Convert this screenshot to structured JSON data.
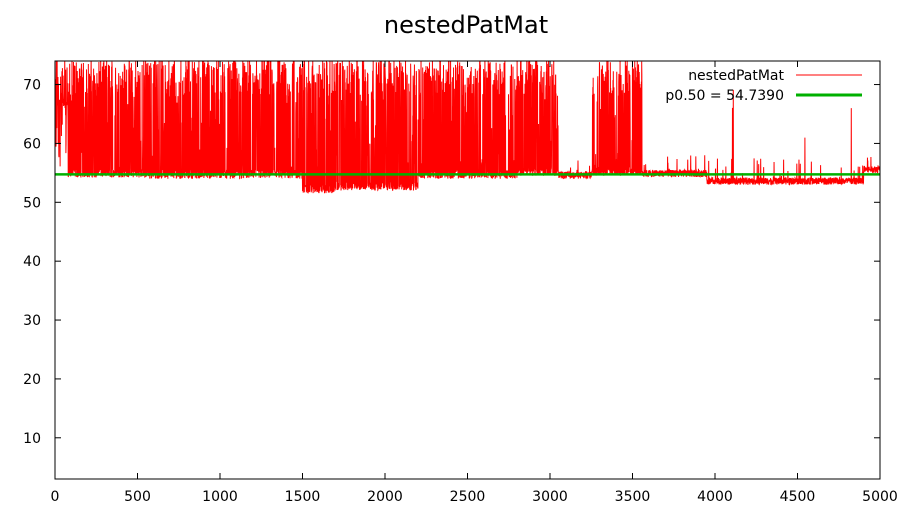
{
  "chart_data": {
    "type": "line",
    "title": "nestedPatMat",
    "xlabel": "",
    "ylabel": "",
    "xlim": [
      0,
      5000
    ],
    "ylim": [
      3,
      74
    ],
    "x_ticks": [
      0,
      500,
      1000,
      1500,
      2000,
      2500,
      3000,
      3500,
      4000,
      4500,
      5000
    ],
    "y_ticks": [
      10,
      20,
      30,
      40,
      50,
      60,
      70
    ],
    "grid": false,
    "legend_position": "top-right",
    "series": [
      {
        "name": "nestedPatMat",
        "color": "#ff0000",
        "samples": 5000,
        "description_segments": [
          {
            "x": [
              0,
              80
            ],
            "base": 66,
            "spike_high": 74
          },
          {
            "x": [
              80,
              540
            ],
            "base": 54.2,
            "spike_high": 74
          },
          {
            "x": [
              540,
              1500
            ],
            "base": 54,
            "spike_high": 74
          },
          {
            "x": [
              1500,
              1700
            ],
            "base": 51.5,
            "spike_high": 74
          },
          {
            "x": [
              1700,
              2200
            ],
            "base": 52,
            "spike_high": 74
          },
          {
            "x": [
              2200,
              2800
            ],
            "base": 54,
            "spike_high": 74
          },
          {
            "x": [
              2800,
              3050
            ],
            "base": 54.5,
            "spike_high": 74
          },
          {
            "x": [
              3050,
              3250
            ],
            "base": 54,
            "spike_high": 56
          },
          {
            "x": [
              3250,
              3560
            ],
            "base": 54.5,
            "spike_high": 74
          },
          {
            "x": [
              3560,
              3950
            ],
            "base": 54.3,
            "spike_high": 56.5
          },
          {
            "x": [
              3950,
              4900
            ],
            "base": 53,
            "spike_high": 56
          },
          {
            "x": [
              4900,
              5000
            ],
            "base": 55,
            "spike_high": 56.5
          }
        ]
      },
      {
        "name": "p0.50 = 54.7390",
        "color": "#00b000",
        "y": 54.739
      }
    ]
  }
}
